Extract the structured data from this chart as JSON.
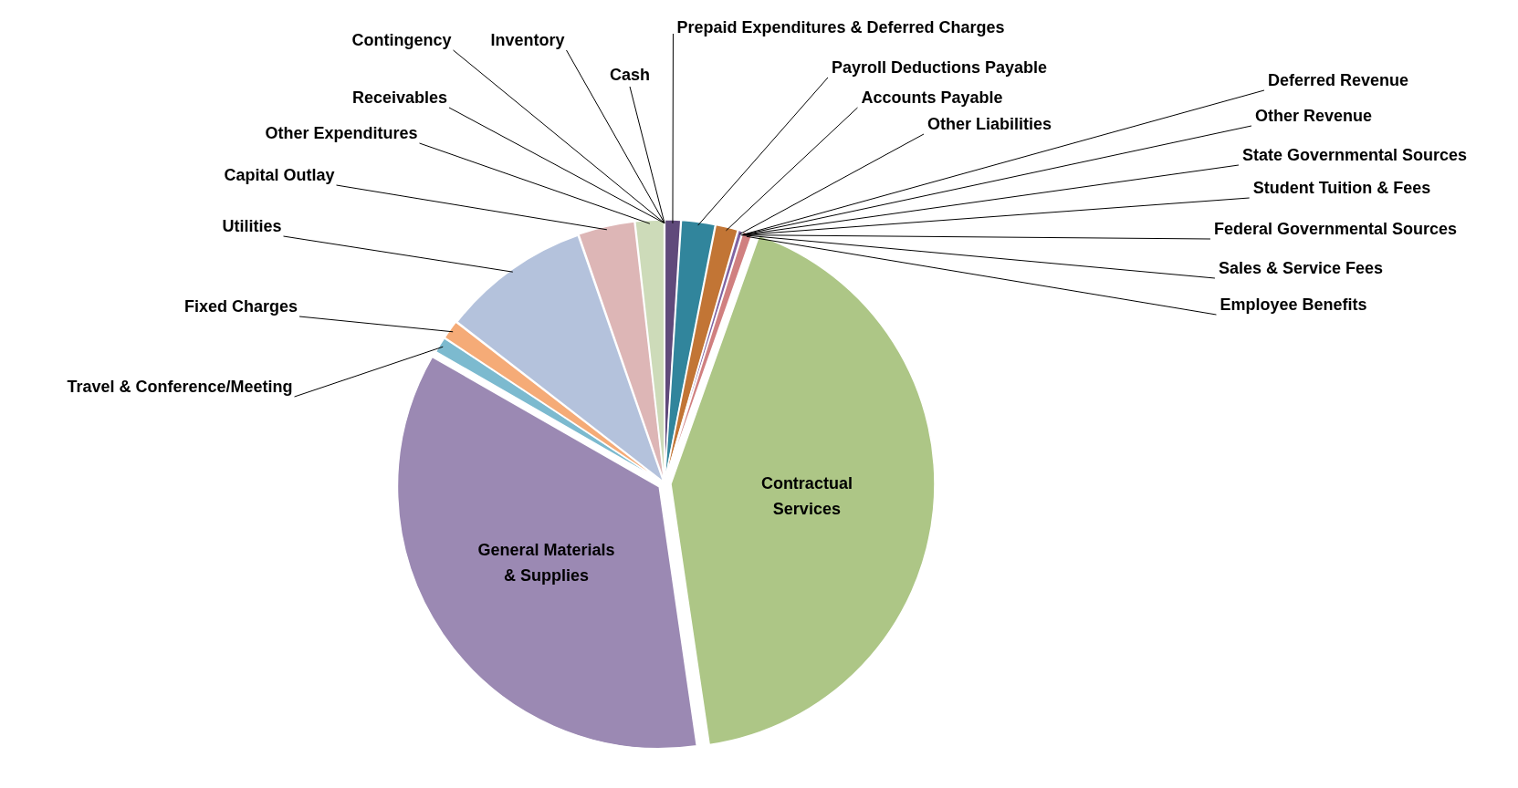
{
  "chart_data": {
    "type": "pie",
    "categories": [
      "Prepaid Expenditures & Deferred Charges",
      "Payroll Deductions Payable",
      "Accounts Payable",
      "Other Liabilities",
      "Deferred Revenue",
      "Other Revenue",
      "State Governmental Sources",
      "Student Tuition & Fees",
      "Federal Governmental Sources",
      "Sales & Service Fees",
      "Employee Benefits",
      "Contractual Services",
      "General Materials & Supplies",
      "Travel & Conference/Meeting",
      "Fixed Charges",
      "Utilities",
      "Capital Outlay",
      "Other Expenditures",
      "Receivables",
      "Contingency",
      "Inventory",
      "Cash"
    ],
    "values": [
      1,
      2.1,
      1.4,
      0.3,
      0,
      0,
      0,
      0,
      0,
      0,
      0.6,
      42.3,
      35.6,
      1,
      1.2,
      9.2,
      3.5,
      1.8,
      0,
      0,
      0,
      0
    ],
    "colors": [
      "#604a7b",
      "#31859c",
      "#c27535",
      "#8064a2",
      "#4bacc6",
      "#f79646",
      "#9bbb59",
      "#c0504d",
      "#4f81bd",
      "#1f497d",
      "#d08080",
      "#adc686",
      "#9b89b3",
      "#7cbacf",
      "#f5ab77",
      "#b4c2dc",
      "#ddb6b6",
      "#cddbb9",
      "#948a54",
      "#4f6228",
      "#953735",
      "#17375e"
    ],
    "legend": false
  }
}
